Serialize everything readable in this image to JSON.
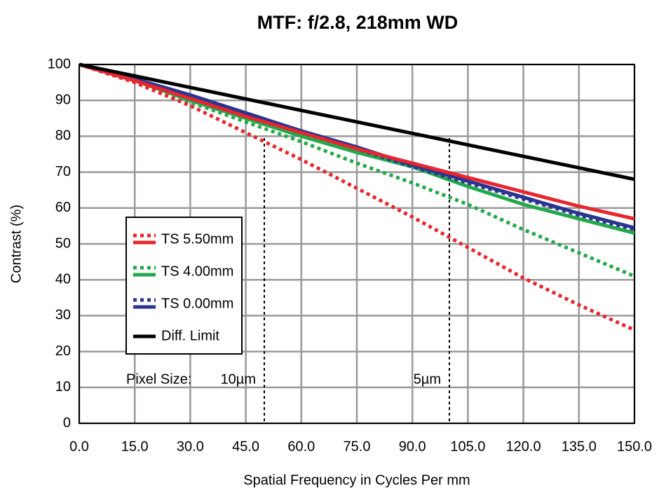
{
  "chart_data": {
    "type": "line",
    "title": "MTF: f/2.8, 218mm WD",
    "x_label": "Spatial Frequency in Cycles Per mm",
    "y_label": "Contrast (%)",
    "x": [
      0,
      15,
      30,
      45,
      60,
      75,
      90,
      105,
      120,
      135,
      150
    ],
    "series": [
      {
        "name": "TS 5.50mm",
        "color": "#e8262d",
        "values": [
          100,
          95.5,
          90.5,
          85.5,
          81,
          76.5,
          72.5,
          68.5,
          64.5,
          60.5,
          57
        ],
        "values_dotted": [
          100,
          95,
          88.5,
          81,
          73.5,
          65.5,
          57.5,
          49,
          40.5,
          33,
          26
        ]
      },
      {
        "name": "TS 4.00mm",
        "color": "#22a84a",
        "values": [
          100,
          95.5,
          90,
          85,
          80,
          75.5,
          71.5,
          66,
          61,
          57,
          53
        ],
        "values_dotted": [
          100,
          95.5,
          89.5,
          84,
          78.5,
          72.5,
          67,
          61,
          54,
          47.5,
          41
        ]
      },
      {
        "name": "TS 0.00mm",
        "color": "#2b3590",
        "values": [
          100,
          96,
          91.5,
          86.5,
          81.5,
          77,
          72,
          67.5,
          63,
          58.5,
          54.5
        ],
        "values_dotted": [
          100,
          95.8,
          91,
          86,
          81,
          76.5,
          71.5,
          67,
          62.5,
          58,
          54
        ]
      },
      {
        "name": "Diff. Limit",
        "color": "#000000",
        "values": [
          100,
          96.8,
          93.6,
          90.4,
          87.2,
          84,
          80.8,
          77.6,
          74.4,
          71.2,
          68
        ]
      }
    ],
    "xlim": [
      0,
      150
    ],
    "xticks": [
      {
        "value": 0,
        "label": "0.0"
      },
      {
        "value": 15,
        "label": "15.0"
      },
      {
        "value": 30,
        "label": "30.0"
      },
      {
        "value": 45,
        "label": "45.0"
      },
      {
        "value": 60,
        "label": "60.0"
      },
      {
        "value": 75,
        "label": "75.0"
      },
      {
        "value": 90,
        "label": "90.0"
      },
      {
        "value": 105,
        "label": "105.0"
      },
      {
        "value": 120,
        "label": "120.0"
      },
      {
        "value": 135,
        "label": "135.0"
      },
      {
        "value": 150,
        "label": "150.0"
      }
    ],
    "ylim": [
      0,
      100
    ],
    "yticks": [
      0,
      10,
      20,
      30,
      40,
      50,
      60,
      70,
      80,
      90,
      100
    ],
    "grid": true,
    "legend": "lower-left",
    "annotation": "Pixel Size:",
    "pixel_lines": [
      {
        "x": 50,
        "label": "10µm"
      },
      {
        "x": 100,
        "label": "5µm"
      }
    ]
  }
}
